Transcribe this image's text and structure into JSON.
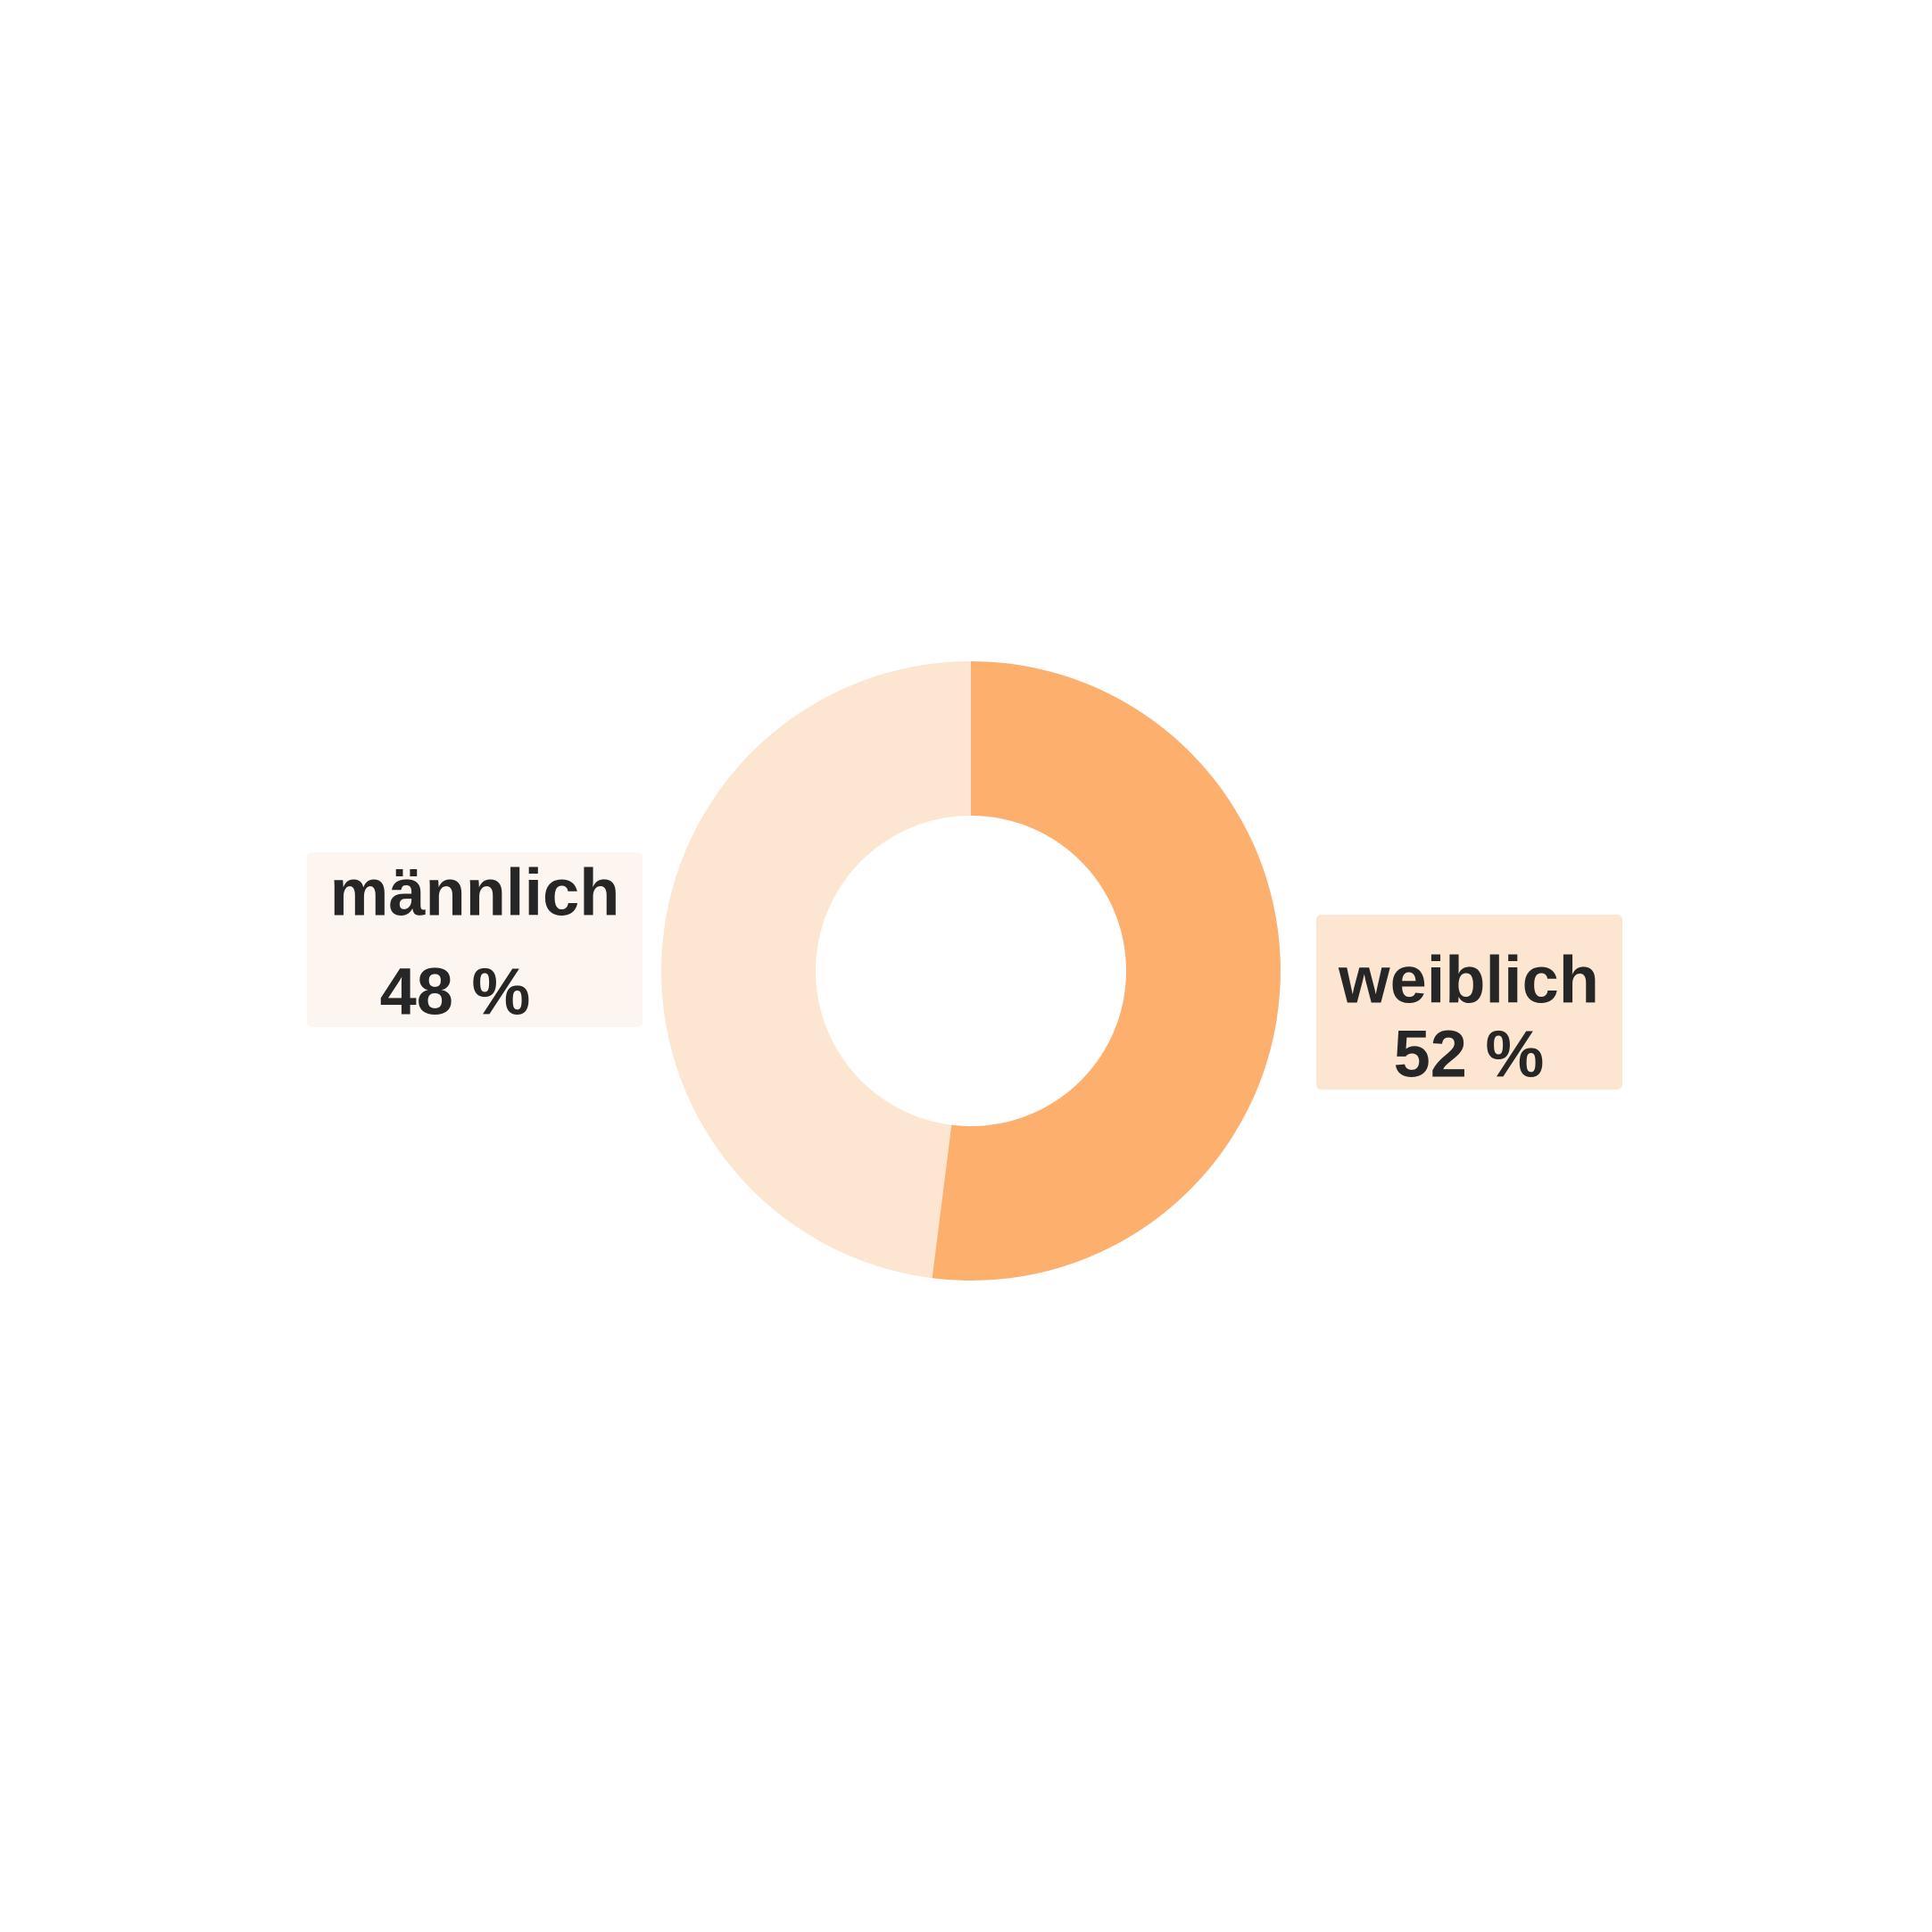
{
  "chart_data": {
    "type": "pie",
    "variant": "donut",
    "title": "",
    "series": [
      {
        "name": "",
        "values": [
          {
            "label": "weiblich",
            "value": 52,
            "value_label": "52 %",
            "color": "#fdb06e",
            "label_bg": "#fce6d2"
          },
          {
            "label": "männlich",
            "value": 48,
            "value_label": "48 %",
            "color": "#fce6d2",
            "label_bg": "#fdf5ef"
          }
        ]
      }
    ],
    "start_angle": "12 o'clock",
    "direction": "clockwise",
    "legend": "none"
  }
}
